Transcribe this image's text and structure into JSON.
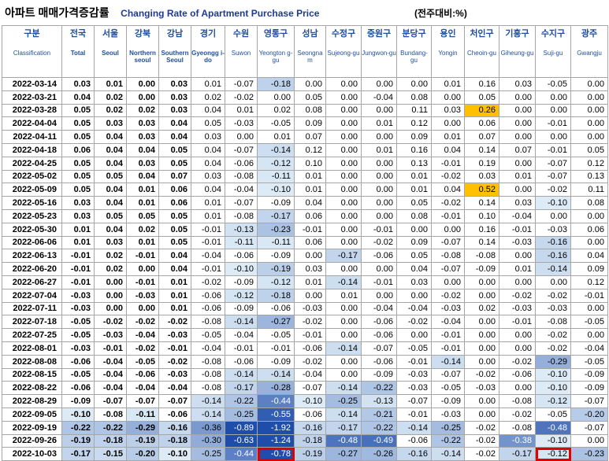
{
  "title": {
    "korean": "아파트 매매가격증감률",
    "english": "Changing Rate of Apartment Purchase Price",
    "unit": "(전주대비:%)"
  },
  "columns": [
    {
      "ko": "구분",
      "en": "Classification",
      "en_style": "normal"
    },
    {
      "ko": "전국",
      "en": "Total",
      "en_style": "bold"
    },
    {
      "ko": "서울",
      "en": "Seoul",
      "en_style": "bold"
    },
    {
      "ko": "강북",
      "en": "Northern seoul",
      "en_style": "bold"
    },
    {
      "ko": "강남",
      "en": "Southern Seoul",
      "en_style": "bold"
    },
    {
      "ko": "경기",
      "en": "Gyeongg i-do",
      "en_style": "bold"
    },
    {
      "ko": "수원",
      "en": "Suwon",
      "en_style": "normal"
    },
    {
      "ko": "영통구",
      "en": "Yeongton g-gu",
      "en_style": "normal"
    },
    {
      "ko": "성남",
      "en": "Seongna m",
      "en_style": "normal"
    },
    {
      "ko": "수정구",
      "en": "Sujeong-gu",
      "en_style": "normal"
    },
    {
      "ko": "중원구",
      "en": "Jungwon-gu",
      "en_style": "normal"
    },
    {
      "ko": "분당구",
      "en": "Bundang-gu",
      "en_style": "normal"
    },
    {
      "ko": "용인",
      "en": "Yongin",
      "en_style": "normal"
    },
    {
      "ko": "처인구",
      "en": "Cheoin-gu",
      "en_style": "normal"
    },
    {
      "ko": "기흥구",
      "en": "Giheung-gu",
      "en_style": "normal"
    },
    {
      "ko": "수지구",
      "en": "Suji-gu",
      "en_style": "normal"
    },
    {
      "ko": "광주",
      "en": "Gwangju",
      "en_style": "normal"
    }
  ],
  "chart_data": {
    "type": "table",
    "title": "아파트 매매가격증감률 Changing Rate of Apartment Purchase Price",
    "unit": "(전주대비:%)",
    "highlight_positive_color": "#ffc000",
    "highlight_negative_color": "#1f4eaa",
    "outlined_cells": [
      {
        "row": "2022-10-03",
        "column": "영통구"
      },
      {
        "row": "2022-10-03",
        "column": "수지구"
      }
    ],
    "rows": [
      {
        "date": "2022-03-14",
        "values": [
          "0.03",
          "0.01",
          "0.00",
          "0.03",
          "0.01",
          "-0.07",
          "-0.18",
          "0.00",
          "0.00",
          "0.00",
          "0.00",
          "0.01",
          "0.16",
          "0.03",
          "-0.05",
          "0.00"
        ]
      },
      {
        "date": "2022-03-21",
        "values": [
          "0.04",
          "0.02",
          "0.00",
          "0.03",
          "0.02",
          "-0.02",
          "0.00",
          "0.05",
          "0.00",
          "-0.04",
          "0.08",
          "0.00",
          "0.05",
          "0.00",
          "0.00",
          "0.00"
        ]
      },
      {
        "date": "2022-03-28",
        "values": [
          "0.05",
          "0.02",
          "0.02",
          "0.03",
          "0.04",
          "0.01",
          "0.02",
          "0.08",
          "0.00",
          "0.00",
          "0.11",
          "0.03",
          "0.26",
          "0.00",
          "0.00",
          "0.00"
        ]
      },
      {
        "date": "2022-04-04",
        "values": [
          "0.05",
          "0.03",
          "0.03",
          "0.04",
          "0.05",
          "-0.03",
          "-0.05",
          "0.09",
          "0.00",
          "0.01",
          "0.12",
          "0.00",
          "0.06",
          "0.00",
          "-0.01",
          "0.00"
        ]
      },
      {
        "date": "2022-04-11",
        "values": [
          "0.05",
          "0.04",
          "0.03",
          "0.04",
          "0.03",
          "0.00",
          "0.01",
          "0.07",
          "0.00",
          "0.00",
          "0.09",
          "0.01",
          "0.07",
          "0.00",
          "0.00",
          "0.00"
        ]
      },
      {
        "date": "2022-04-18",
        "values": [
          "0.06",
          "0.04",
          "0.04",
          "0.05",
          "0.04",
          "-0.07",
          "-0.14",
          "0.12",
          "0.00",
          "0.01",
          "0.16",
          "0.04",
          "0.14",
          "0.07",
          "-0.01",
          "0.05"
        ]
      },
      {
        "date": "2022-04-25",
        "values": [
          "0.05",
          "0.04",
          "0.03",
          "0.05",
          "0.04",
          "-0.06",
          "-0.12",
          "0.10",
          "0.00",
          "0.00",
          "0.13",
          "-0.01",
          "0.19",
          "0.00",
          "-0.07",
          "0.12"
        ]
      },
      {
        "date": "2022-05-02",
        "values": [
          "0.05",
          "0.05",
          "0.04",
          "0.07",
          "0.03",
          "-0.08",
          "-0.11",
          "0.01",
          "0.00",
          "0.00",
          "0.01",
          "-0.02",
          "0.03",
          "0.01",
          "-0.07",
          "0.13"
        ]
      },
      {
        "date": "2022-05-09",
        "values": [
          "0.05",
          "0.04",
          "0.01",
          "0.06",
          "0.04",
          "-0.04",
          "-0.10",
          "0.01",
          "0.00",
          "0.00",
          "0.01",
          "0.04",
          "0.52",
          "0.00",
          "-0.02",
          "0.11"
        ]
      },
      {
        "date": "2022-05-16",
        "values": [
          "0.03",
          "0.04",
          "0.01",
          "0.06",
          "0.01",
          "-0.07",
          "-0.09",
          "0.04",
          "0.00",
          "0.00",
          "0.05",
          "-0.02",
          "0.14",
          "0.03",
          "-0.10",
          "0.08"
        ]
      },
      {
        "date": "2022-05-23",
        "values": [
          "0.03",
          "0.05",
          "0.05",
          "0.05",
          "0.01",
          "-0.08",
          "-0.17",
          "0.06",
          "0.00",
          "0.00",
          "0.08",
          "-0.01",
          "0.10",
          "-0.04",
          "0.00",
          "0.00"
        ]
      },
      {
        "date": "2022-05-30",
        "values": [
          "0.01",
          "0.04",
          "0.02",
          "0.05",
          "-0.01",
          "-0.13",
          "-0.23",
          "-0.01",
          "0.00",
          "-0.01",
          "0.00",
          "0.00",
          "0.16",
          "-0.01",
          "-0.03",
          "0.06"
        ]
      },
      {
        "date": "2022-06-06",
        "values": [
          "0.01",
          "0.03",
          "0.01",
          "0.05",
          "-0.01",
          "-0.11",
          "-0.11",
          "0.06",
          "0.00",
          "-0.02",
          "0.09",
          "-0.07",
          "0.14",
          "-0.03",
          "-0.16",
          "0.00"
        ]
      },
      {
        "date": "2022-06-13",
        "values": [
          "-0.01",
          "0.02",
          "-0.01",
          "0.04",
          "-0.04",
          "-0.06",
          "-0.09",
          "0.00",
          "-0.17",
          "-0.06",
          "0.05",
          "-0.08",
          "-0.08",
          "0.00",
          "-0.16",
          "0.04"
        ]
      },
      {
        "date": "2022-06-20",
        "values": [
          "-0.01",
          "0.02",
          "0.00",
          "0.04",
          "-0.01",
          "-0.10",
          "-0.19",
          "0.03",
          "0.00",
          "0.00",
          "0.04",
          "-0.07",
          "-0.09",
          "0.01",
          "-0.14",
          "0.09"
        ]
      },
      {
        "date": "2022-06-27",
        "values": [
          "-0.01",
          "0.00",
          "-0.01",
          "0.01",
          "-0.02",
          "-0.09",
          "-0.12",
          "0.01",
          "-0.14",
          "-0.01",
          "0.03",
          "0.00",
          "0.00",
          "0.00",
          "0.00",
          "0.12"
        ]
      },
      {
        "date": "2022-07-04",
        "values": [
          "-0.03",
          "0.00",
          "-0.03",
          "0.01",
          "-0.06",
          "-0.12",
          "-0.18",
          "0.00",
          "0.01",
          "0.00",
          "0.00",
          "-0.02",
          "0.00",
          "-0.02",
          "-0.02",
          "-0.01"
        ]
      },
      {
        "date": "2022-07-11",
        "values": [
          "-0.03",
          "0.00",
          "0.00",
          "0.01",
          "-0.06",
          "-0.09",
          "-0.06",
          "-0.03",
          "0.00",
          "-0.04",
          "-0.04",
          "-0.03",
          "0.02",
          "-0.03",
          "-0.03",
          "0.00"
        ]
      },
      {
        "date": "2022-07-18",
        "values": [
          "-0.05",
          "-0.02",
          "-0.02",
          "-0.02",
          "-0.08",
          "-0.14",
          "-0.27",
          "-0.02",
          "0.00",
          "-0.06",
          "-0.02",
          "-0.04",
          "0.00",
          "-0.01",
          "-0.08",
          "-0.05"
        ]
      },
      {
        "date": "2022-07-25",
        "values": [
          "-0.05",
          "-0.03",
          "-0.04",
          "-0.03",
          "-0.05",
          "-0.04",
          "-0.05",
          "-0.01",
          "0.00",
          "-0.06",
          "0.00",
          "-0.01",
          "0.00",
          "0.00",
          "-0.02",
          "0.00"
        ]
      },
      {
        "date": "2022-08-01",
        "values": [
          "-0.03",
          "-0.01",
          "-0.02",
          "-0.01",
          "-0.04",
          "-0.01",
          "-0.01",
          "-0.06",
          "-0.14",
          "-0.07",
          "-0.05",
          "-0.01",
          "0.00",
          "0.00",
          "-0.02",
          "-0.04"
        ]
      },
      {
        "date": "2022-08-08",
        "values": [
          "-0.06",
          "-0.04",
          "-0.05",
          "-0.02",
          "-0.08",
          "-0.06",
          "-0.09",
          "-0.02",
          "0.00",
          "-0.06",
          "-0.01",
          "-0.14",
          "0.00",
          "-0.02",
          "-0.29",
          "-0.05"
        ]
      },
      {
        "date": "2022-08-15",
        "values": [
          "-0.05",
          "-0.04",
          "-0.06",
          "-0.03",
          "-0.08",
          "-0.14",
          "-0.14",
          "-0.04",
          "0.00",
          "-0.09",
          "-0.03",
          "-0.07",
          "-0.02",
          "-0.06",
          "-0.10",
          "-0.09"
        ]
      },
      {
        "date": "2022-08-22",
        "values": [
          "-0.06",
          "-0.04",
          "-0.04",
          "-0.04",
          "-0.08",
          "-0.17",
          "-0.28",
          "-0.07",
          "-0.14",
          "-0.22",
          "-0.03",
          "-0.05",
          "-0.03",
          "0.00",
          "-0.10",
          "-0.09"
        ]
      },
      {
        "date": "2022-08-29",
        "values": [
          "-0.09",
          "-0.07",
          "-0.07",
          "-0.07",
          "-0.14",
          "-0.22",
          "-0.44",
          "-0.10",
          "-0.25",
          "-0.13",
          "-0.07",
          "-0.09",
          "0.00",
          "-0.08",
          "-0.12",
          "-0.07"
        ]
      },
      {
        "date": "2022-09-05",
        "values": [
          "-0.10",
          "-0.08",
          "-0.11",
          "-0.06",
          "-0.14",
          "-0.25",
          "-0.55",
          "-0.06",
          "-0.14",
          "-0.21",
          "-0.01",
          "-0.03",
          "0.00",
          "-0.02",
          "-0.05",
          "-0.20"
        ]
      },
      {
        "date": "2022-09-19",
        "values": [
          "-0.22",
          "-0.22",
          "-0.29",
          "-0.16",
          "-0.36",
          "-0.89",
          "-1.92",
          "-0.16",
          "-0.17",
          "-0.22",
          "-0.14",
          "-0.25",
          "-0.02",
          "-0.08",
          "-0.48",
          "-0.07"
        ]
      },
      {
        "date": "2022-09-26",
        "values": [
          "-0.19",
          "-0.18",
          "-0.19",
          "-0.18",
          "-0.30",
          "-0.63",
          "-1.24",
          "-0.18",
          "-0.48",
          "-0.49",
          "-0.06",
          "-0.22",
          "-0.02",
          "-0.38",
          "-0.10",
          "0.00"
        ]
      },
      {
        "date": "2022-10-03",
        "values": [
          "-0.17",
          "-0.15",
          "-0.20",
          "-0.10",
          "-0.25",
          "-0.44",
          "-0.78",
          "-0.19",
          "-0.27",
          "-0.26",
          "-0.16",
          "-0.14",
          "-0.02",
          "-0.17",
          "-0.12",
          "-0.23"
        ]
      }
    ]
  }
}
